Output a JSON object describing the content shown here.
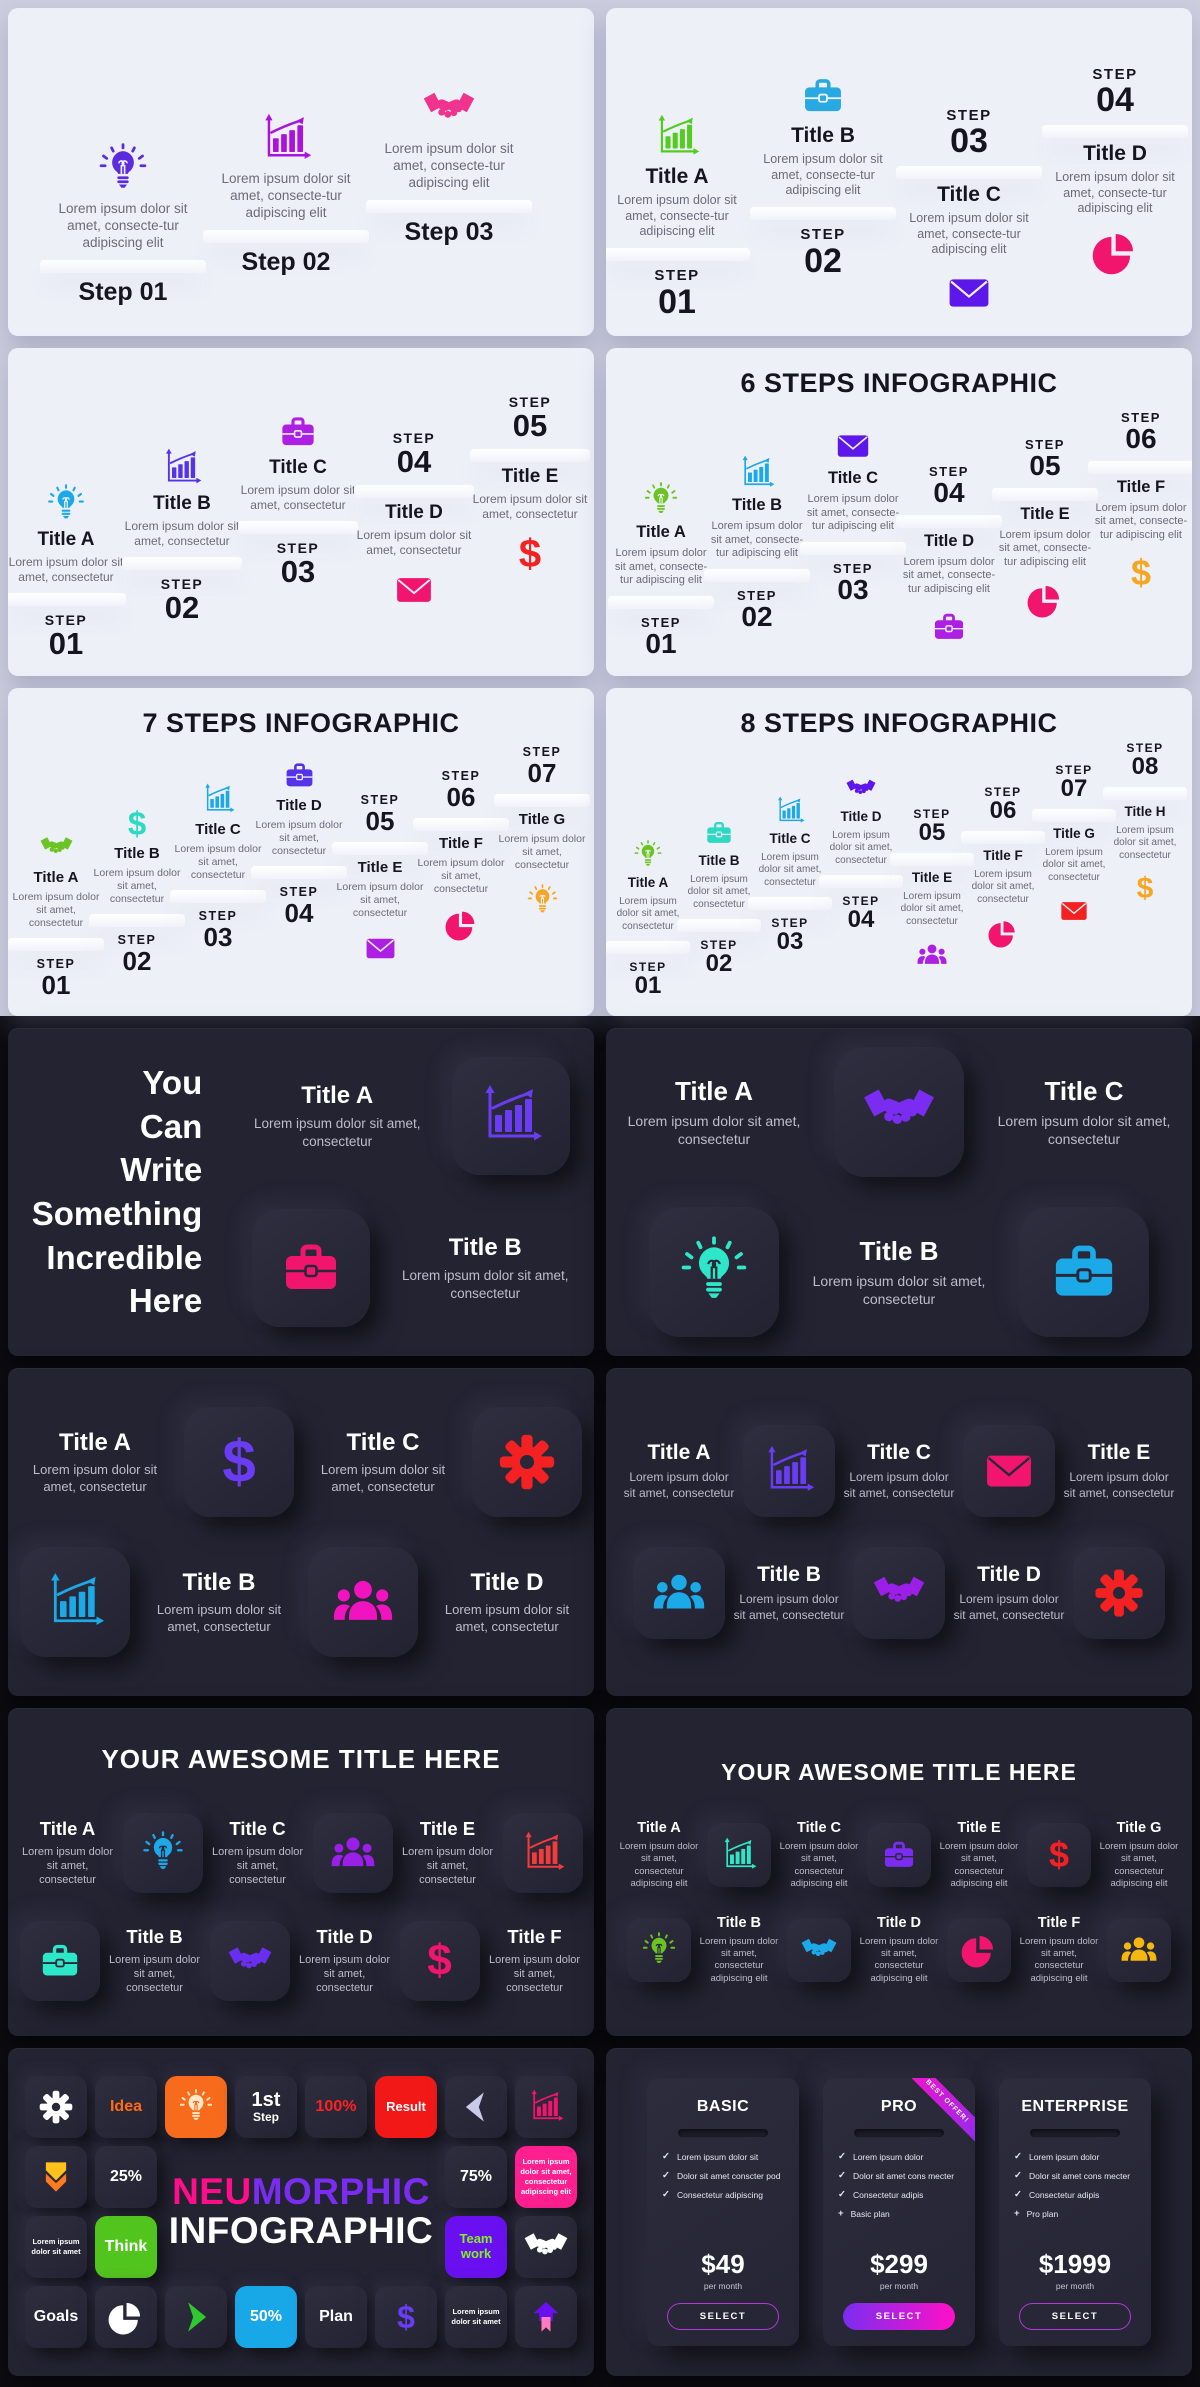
{
  "page": {
    "bg_light": "#CDCEDF",
    "bg_dark": "#0D0C12",
    "panel_light": "#EEF0F8",
    "panel_dark": "#242332"
  },
  "panels": {
    "steps3": {
      "body": "Lorem ipsum dolor sit amet, consecte-tur adipiscing elit",
      "items": [
        {
          "icon": "lightbulb",
          "color": "#5B2BE0",
          "step": "Step 01"
        },
        {
          "icon": "chart",
          "color": "#AB12DD",
          "step": "Step 02"
        },
        {
          "icon": "handshake",
          "color": "#F0338D",
          "step": "Step 03"
        }
      ]
    },
    "steps4": {
      "step_word": "STEP",
      "body": "Lorem ipsum dolor sit amet, consecte-tur adipiscing elit",
      "items": [
        {
          "icon": "chart",
          "color": "#52CC1F",
          "title": "Title A",
          "step": "01"
        },
        {
          "icon": "briefcase",
          "color": "#29A9E1",
          "title": "Title B",
          "step": "02"
        },
        {
          "icon": "envelope",
          "color": "#5E17EB",
          "title": "Title C",
          "step": "03"
        },
        {
          "icon": "pie",
          "color": "#F1156E",
          "title": "Title D",
          "step": "04"
        }
      ]
    },
    "steps5": {
      "step_word": "STEP",
      "body": "Lorem ipsum dolor sit amet, consectetur",
      "items": [
        {
          "icon": "lightbulb",
          "color": "#1BA9E8",
          "title": "Title A",
          "step": "01"
        },
        {
          "icon": "chart",
          "color": "#5533E8",
          "title": "Title B",
          "step": "02"
        },
        {
          "icon": "briefcase",
          "color": "#AD1FE3",
          "title": "Title C",
          "step": "03"
        },
        {
          "icon": "envelope",
          "color": "#F1156E",
          "title": "Title D",
          "step": "04"
        },
        {
          "icon": "dollar",
          "color": "#F32121",
          "title": "Title E",
          "step": "05"
        }
      ]
    },
    "steps6": {
      "title": "6 STEPS INFOGRAPHIC",
      "step_word": "STEP",
      "body": "Lorem ipsum dolor sit amet, consecte-tur adipiscing elit",
      "items": [
        {
          "icon": "lightbulb",
          "color": "#6CC424",
          "title": "Title A",
          "step": "01"
        },
        {
          "icon": "chart",
          "color": "#1BA9E8",
          "title": "Title B",
          "step": "02"
        },
        {
          "icon": "envelope",
          "color": "#5E17EB",
          "title": "Title C",
          "step": "03"
        },
        {
          "icon": "briefcase",
          "color": "#AD1FE3",
          "title": "Title D",
          "step": "04"
        },
        {
          "icon": "pie",
          "color": "#F1156E",
          "title": "Title E",
          "step": "05"
        },
        {
          "icon": "dollar",
          "color": "#F5A623",
          "title": "Title F",
          "step": "06"
        }
      ]
    },
    "steps7": {
      "title": "7 STEPS INFOGRAPHIC",
      "step_word": "STEP",
      "body": "Lorem ipsum dolor sit amet, consectetur",
      "items": [
        {
          "icon": "handshake",
          "color": "#6CC424",
          "title": "Title A",
          "step": "01"
        },
        {
          "icon": "dollar",
          "color": "#2ED9C3",
          "title": "Title B",
          "step": "02"
        },
        {
          "icon": "chart",
          "color": "#1BA9E8",
          "title": "Title C",
          "step": "03"
        },
        {
          "icon": "briefcase",
          "color": "#5533E8",
          "title": "Title D",
          "step": "04"
        },
        {
          "icon": "envelope",
          "color": "#AD1FE3",
          "title": "Title E",
          "step": "05"
        },
        {
          "icon": "pie",
          "color": "#F1156E",
          "title": "Title F",
          "step": "06"
        },
        {
          "icon": "lightbulb",
          "color": "#F5A623",
          "title": "Title G",
          "step": "07"
        }
      ]
    },
    "steps8": {
      "title": "8 STEPS INFOGRAPHIC",
      "step_word": "STEP",
      "body": "Lorem ipsum dolor sit amet, consectetur",
      "items": [
        {
          "icon": "lightbulb",
          "color": "#6CC424",
          "title": "Title A",
          "step": "01"
        },
        {
          "icon": "briefcase",
          "color": "#2ED9C3",
          "title": "Title B",
          "step": "02"
        },
        {
          "icon": "chart",
          "color": "#1BA9E8",
          "title": "Title C",
          "step": "03"
        },
        {
          "icon": "handshake",
          "color": "#5E17EB",
          "title": "Title D",
          "step": "04"
        },
        {
          "icon": "people",
          "color": "#AD1FE3",
          "title": "Title E",
          "step": "05"
        },
        {
          "icon": "pie",
          "color": "#F1156E",
          "title": "Title F",
          "step": "06"
        },
        {
          "icon": "envelope",
          "color": "#F32121",
          "title": "Title G",
          "step": "07"
        },
        {
          "icon": "dollar",
          "color": "#F5A623",
          "title": "Title H",
          "step": "08"
        }
      ]
    },
    "incredible": {
      "cols": 2,
      "heading_lines": [
        "You",
        "Can",
        "Write",
        "Something",
        "Incredible",
        "Here"
      ],
      "body": "Lorem ipsum dolor sit amet, consectetur",
      "cells": [
        {
          "kind": "text",
          "title": "Title A"
        },
        {
          "kind": "tile",
          "icon": "chart",
          "color": "#6A3DF5"
        },
        {
          "kind": "tile",
          "icon": "briefcase",
          "color": "#F1156E"
        },
        {
          "kind": "text",
          "title": "Title B"
        }
      ]
    },
    "dark3": {
      "cols": 3,
      "body": "Lorem ipsum dolor sit amet, consectetur",
      "cells": [
        {
          "kind": "text",
          "title": "Title A"
        },
        {
          "kind": "tile",
          "icon": "handshake",
          "color": "#7A2DF0"
        },
        {
          "kind": "text",
          "title": "Title C"
        },
        {
          "kind": "tile",
          "icon": "lightbulb",
          "color": "#2EE6C8"
        },
        {
          "kind": "text",
          "title": "Title B"
        },
        {
          "kind": "tile",
          "icon": "briefcase",
          "color": "#1BA9E8"
        }
      ]
    },
    "dark4": {
      "cols": 4,
      "body": "Lorem ipsum dolor sit amet, consectetur",
      "cells": [
        {
          "kind": "text",
          "title": "Title A"
        },
        {
          "kind": "tile",
          "icon": "dollar",
          "color": "#6A3DF5"
        },
        {
          "kind": "text",
          "title": "Title C"
        },
        {
          "kind": "tile",
          "icon": "gear",
          "color": "#F32121"
        },
        {
          "kind": "tile",
          "icon": "chart",
          "color": "#1BA9E8"
        },
        {
          "kind": "text",
          "title": "Title B"
        },
        {
          "kind": "tile",
          "icon": "people",
          "color": "#F113C0"
        },
        {
          "kind": "text",
          "title": "Title D"
        }
      ]
    },
    "dark5": {
      "cols": 5,
      "body": "Lorem ipsum dolor sit amet, consectetur",
      "cells": [
        {
          "kind": "text",
          "title": "Title A"
        },
        {
          "kind": "tile",
          "icon": "chart",
          "color": "#6A3DF5"
        },
        {
          "kind": "text",
          "title": "Title C"
        },
        {
          "kind": "tile",
          "icon": "envelope",
          "color": "#F1156E"
        },
        {
          "kind": "text",
          "title": "Title E"
        },
        {
          "kind": "tile",
          "icon": "people",
          "color": "#1BA9E8"
        },
        {
          "kind": "text",
          "title": "Title B"
        },
        {
          "kind": "tile",
          "icon": "handshake",
          "color": "#9B1FE8"
        },
        {
          "kind": "text",
          "title": "Title D"
        },
        {
          "kind": "tile",
          "icon": "gear",
          "color": "#F32121"
        }
      ]
    },
    "awesome6": {
      "cols": 6,
      "title": "YOUR AWESOME TITLE HERE",
      "body": "Lorem ipsum dolor sit amet, consectetur",
      "cells": [
        {
          "kind": "text",
          "title": "Title A"
        },
        {
          "kind": "tile",
          "icon": "lightbulb",
          "color": "#1BA9E8"
        },
        {
          "kind": "text",
          "title": "Title C"
        },
        {
          "kind": "tile",
          "icon": "people",
          "color": "#9B1FE8"
        },
        {
          "kind": "text",
          "title": "Title E"
        },
        {
          "kind": "tile",
          "icon": "chart",
          "color": "#F33B3B"
        },
        {
          "kind": "tile",
          "icon": "briefcase",
          "color": "#2EE6C8"
        },
        {
          "kind": "text",
          "title": "Title B"
        },
        {
          "kind": "tile",
          "icon": "handshake",
          "color": "#6A2EF0"
        },
        {
          "kind": "text",
          "title": "Title D"
        },
        {
          "kind": "tile",
          "icon": "dollar",
          "color": "#F1156E"
        },
        {
          "kind": "text",
          "title": "Title F"
        }
      ]
    },
    "awesome7": {
      "cols": 7,
      "title": "YOUR AWESOME TITLE HERE",
      "body": "Lorem ipsum dolor sit amet, consectetur adipiscing elit",
      "cells": [
        {
          "kind": "text",
          "title": "Title A"
        },
        {
          "kind": "tile",
          "icon": "chart",
          "color": "#2EE6C8"
        },
        {
          "kind": "text",
          "title": "Title C"
        },
        {
          "kind": "tile",
          "icon": "briefcase",
          "color": "#7A2DF0"
        },
        {
          "kind": "text",
          "title": "Title E"
        },
        {
          "kind": "tile",
          "icon": "dollar",
          "color": "#F32121"
        },
        {
          "kind": "text",
          "title": "Title G"
        },
        {
          "kind": "tile",
          "icon": "lightbulb",
          "color": "#6CC424"
        },
        {
          "kind": "text",
          "title": "Title B"
        },
        {
          "kind": "tile",
          "icon": "handshake",
          "color": "#1BA9E8"
        },
        {
          "kind": "text",
          "title": "Title D"
        },
        {
          "kind": "tile",
          "icon": "pie",
          "color": "#F1156E"
        },
        {
          "kind": "text",
          "title": "Title F"
        },
        {
          "kind": "tile",
          "icon": "people",
          "color": "#F5B810"
        }
      ]
    },
    "collage": {
      "center": {
        "word1": "NEU",
        "word1_color": "#FF0D8A",
        "word2": "MORPHIC",
        "word2_color": "#7A2DF0",
        "line2": "INFOGRAPHIC"
      },
      "cells": [
        {
          "kind": "icon",
          "icon": "gear",
          "color": "#FFFFFF"
        },
        {
          "kind": "label",
          "text": "Idea",
          "color": "#FF6A13"
        },
        {
          "kind": "icon",
          "icon": "lightbulb",
          "color": "#FFE9C9",
          "bg": "#F86B1C"
        },
        {
          "kind": "steplabel",
          "line1": "1st",
          "line2": "Step",
          "color": "#FFFFFF"
        },
        {
          "kind": "label",
          "text": "100%",
          "color": "#FF2121"
        },
        {
          "kind": "label",
          "text": "Result",
          "color": "#FFFFFF",
          "bg": "#F31818"
        },
        {
          "kind": "icon",
          "icon": "chevron-left",
          "color": "#C9C9EA"
        },
        {
          "kind": "icon",
          "icon": "chart",
          "color": "#F1156E"
        },
        {
          "kind": "icon",
          "icon": "arrow-down",
          "color": "#FFC21C"
        },
        {
          "kind": "label",
          "text": "25%",
          "color": "#FFFFFF"
        },
        {
          "kind": "label",
          "text": "75%",
          "color": "#FFFFFF"
        },
        {
          "kind": "small",
          "text": "Lorem ipsum dolor sit amet, consectetur adipiscing elit",
          "color": "#FFFFFF",
          "bg": "#FF1F8F"
        },
        {
          "kind": "small",
          "text": "Lorem ipsum dolor sit amet",
          "color": "#FFFFFF"
        },
        {
          "kind": "label",
          "text": "Think",
          "color": "#FFFFFF",
          "bg": "#52C41E"
        },
        {
          "kind": "label",
          "text": "Team work",
          "color": "#7EF321",
          "bg": "#6A10F0"
        },
        {
          "kind": "icon",
          "icon": "handshake",
          "color": "#FFFFFF"
        },
        {
          "kind": "label",
          "text": "Goals",
          "color": "#FFFFFF"
        },
        {
          "kind": "icon",
          "icon": "pie",
          "color": "#FFFFFF"
        },
        {
          "kind": "icon",
          "icon": "chevron-right",
          "color": "#2FC92F"
        },
        {
          "kind": "label",
          "text": "50%",
          "color": "#FFFFFF",
          "bg": "#18A8E8"
        },
        {
          "kind": "label",
          "text": "Plan",
          "color": "#FFFFFF"
        },
        {
          "kind": "icon",
          "icon": "dollar",
          "color": "#6A3DF5"
        },
        {
          "kind": "small",
          "text": "Lorem ipsum dolor sit amet",
          "color": "#FFFFFF"
        },
        {
          "kind": "icon",
          "icon": "bookmark",
          "color": "#6A10F0"
        }
      ]
    },
    "pricing": {
      "cards": [
        {
          "name": "BASIC",
          "featured": false,
          "features": [
            {
              "mark": "✓",
              "text": "Lorem ipsum dolor sit"
            },
            {
              "mark": "✓",
              "text": "Dolor sit amet conscter pod"
            },
            {
              "mark": "✓",
              "text": "Consectetur adipiscing"
            }
          ],
          "price": "$49",
          "period": "per month",
          "button": "SELECT"
        },
        {
          "name": "PRO",
          "featured": true,
          "ribbon": "BEST OFFER!",
          "features": [
            {
              "mark": "✓",
              "text": "Lorem ipsum dolor"
            },
            {
              "mark": "✓",
              "text": "Dolor sit amet cons mecter"
            },
            {
              "mark": "✓",
              "text": "Consectetur adipis"
            },
            {
              "mark": "+",
              "text": "Basic plan"
            }
          ],
          "price": "$299",
          "period": "per month",
          "button": "SELECT"
        },
        {
          "name": "ENTERPRISE",
          "featured": false,
          "features": [
            {
              "mark": "✓",
              "text": "Lorem ipsum dolor"
            },
            {
              "mark": "✓",
              "text": "Dolor sit amet cons mecter"
            },
            {
              "mark": "✓",
              "text": "Consectetur adipis"
            },
            {
              "mark": "+",
              "text": "Pro plan"
            }
          ],
          "price": "$1999",
          "period": "per month",
          "button": "SELECT"
        }
      ]
    }
  }
}
